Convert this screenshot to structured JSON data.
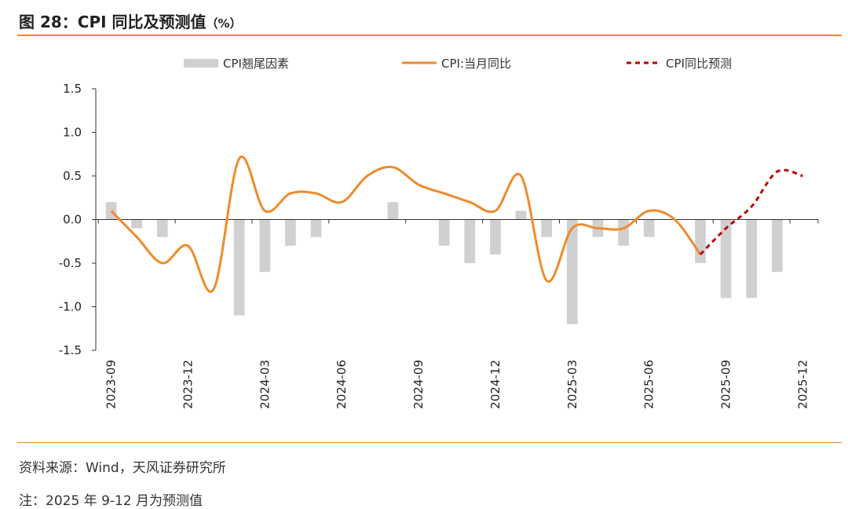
{
  "header": {
    "title": "图 28：CPI 同比及预测值",
    "unit": "（%）"
  },
  "footer": {
    "source": "资料来源：Wind，天风证券研究所",
    "note": "注：2025 年 9-12 月为预测值"
  },
  "colors": {
    "accent": "#e8872b",
    "bars": "#d0d0d0",
    "line": "#ef8b2c",
    "forecast": "#c00000"
  },
  "chart_data": {
    "type": "bar+line",
    "ylim": [
      -1.5,
      1.5
    ],
    "yticks": [
      "1.5",
      "1.0",
      "0.5",
      "0.0",
      "-0.5",
      "-1.0",
      "-1.5"
    ],
    "x_labels": [
      "2023-09",
      "2023-12",
      "2024-03",
      "2024-06",
      "2024-09",
      "2024-12",
      "2025-03",
      "2025-06",
      "2025-09",
      "2025-12"
    ],
    "months": [
      "2023-09",
      "2023-10",
      "2023-11",
      "2023-12",
      "2024-01",
      "2024-02",
      "2024-03",
      "2024-04",
      "2024-05",
      "2024-06",
      "2024-07",
      "2024-08",
      "2024-09",
      "2024-10",
      "2024-11",
      "2024-12",
      "2025-01",
      "2025-02",
      "2025-03",
      "2025-04",
      "2025-05",
      "2025-06",
      "2025-07",
      "2025-08",
      "2025-09",
      "2025-10",
      "2025-11",
      "2025-12"
    ],
    "series": [
      {
        "name": "CPI翘尾因素",
        "kind": "bar",
        "values": [
          0.2,
          -0.1,
          -0.2,
          0.0,
          0.0,
          -1.1,
          -0.6,
          -0.3,
          -0.2,
          0.0,
          0.0,
          0.2,
          0.0,
          -0.3,
          -0.5,
          -0.4,
          0.1,
          -0.2,
          -1.2,
          -0.2,
          -0.3,
          -0.2,
          0.0,
          -0.5,
          -0.9,
          -0.9,
          -0.6,
          0.0
        ]
      },
      {
        "name": "CPI:当月同比",
        "kind": "line",
        "values": [
          0.1,
          -0.2,
          -0.5,
          -0.3,
          -0.8,
          0.7,
          0.1,
          0.3,
          0.3,
          0.2,
          0.5,
          0.6,
          0.4,
          0.3,
          0.2,
          0.1,
          0.5,
          -0.7,
          -0.1,
          -0.1,
          -0.1,
          0.1,
          0.0,
          -0.4
        ]
      },
      {
        "name": "CPI同比预测",
        "kind": "dashed",
        "start_index": 23,
        "values": [
          -0.4,
          -0.1,
          0.15,
          0.55,
          0.5
        ]
      }
    ]
  }
}
